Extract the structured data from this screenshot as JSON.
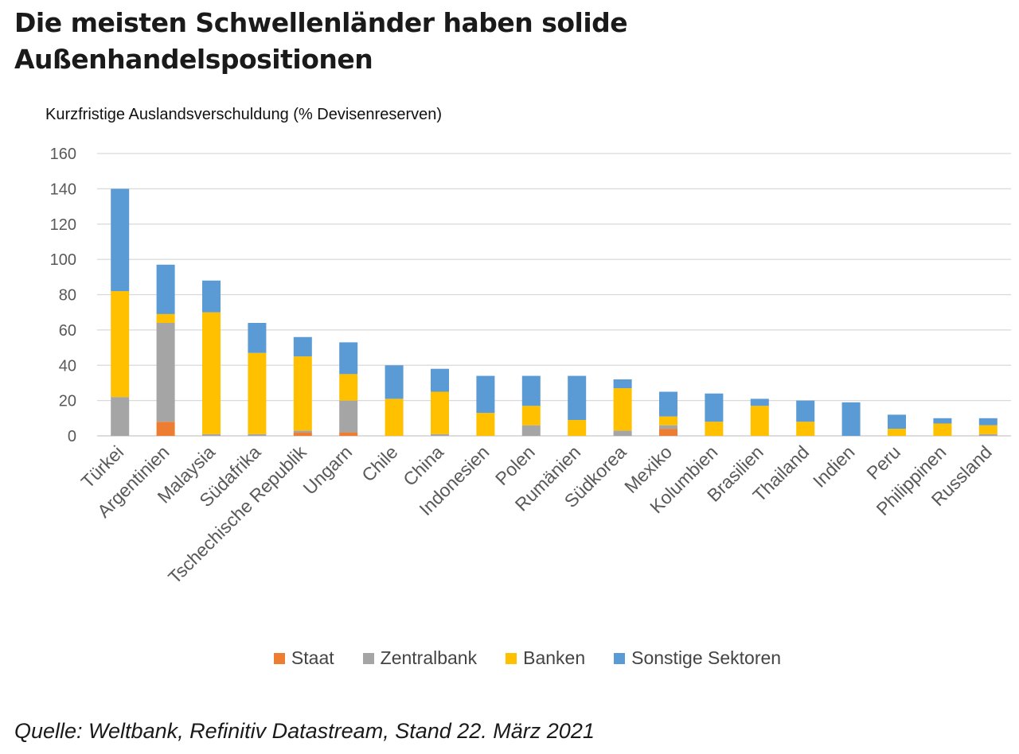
{
  "headline": "Die meisten Schwellenländer haben solide Außenhandelspositionen",
  "source": "Quelle: Weltbank, Refinitiv Datastream, Stand 22. März 2021",
  "chart_data": {
    "type": "bar",
    "stacked": true,
    "title": "Die meisten Schwellenländer haben solide Außenhandelspositionen",
    "ylabel": "Kurzfristige Auslandsverschuldung (% Devisenreserven)",
    "xlabel": "",
    "ylim": [
      0,
      160
    ],
    "yticks": [
      0,
      20,
      40,
      60,
      80,
      100,
      120,
      140,
      160
    ],
    "grid": true,
    "legend_position": "bottom",
    "categories": [
      "Türkei",
      "Argentinien",
      "Malaysia",
      "Südafrika",
      "Tschechische Republik",
      "Ungarn",
      "Chile",
      "China",
      "Indonesien",
      "Polen",
      "Rumänien",
      "Südkorea",
      "Mexiko",
      "Kolumbien",
      "Brasilien",
      "Thailand",
      "Indien",
      "Peru",
      "Philippinen",
      "Russland"
    ],
    "series": [
      {
        "name": "Staat",
        "color": "#ED7D31",
        "values": [
          0,
          8,
          0,
          0,
          2,
          2,
          0,
          0,
          0,
          0,
          0,
          0,
          4,
          0,
          0,
          0,
          0,
          0,
          0,
          0
        ]
      },
      {
        "name": "Zentralbank",
        "color": "#A5A5A5",
        "values": [
          22,
          56,
          1,
          1,
          1,
          18,
          0,
          1,
          0,
          6,
          0,
          3,
          2,
          0,
          0,
          0,
          0,
          0,
          0,
          1
        ]
      },
      {
        "name": "Banken",
        "color": "#FFC000",
        "values": [
          60,
          5,
          69,
          46,
          42,
          15,
          21,
          24,
          13,
          11,
          9,
          24,
          5,
          8,
          17,
          8,
          0,
          4,
          7,
          5
        ]
      },
      {
        "name": "Sonstige Sektoren",
        "color": "#5B9BD5",
        "values": [
          58,
          28,
          18,
          17,
          11,
          18,
          19,
          13,
          21,
          17,
          25,
          5,
          14,
          16,
          4,
          12,
          19,
          8,
          3,
          4
        ]
      }
    ]
  }
}
